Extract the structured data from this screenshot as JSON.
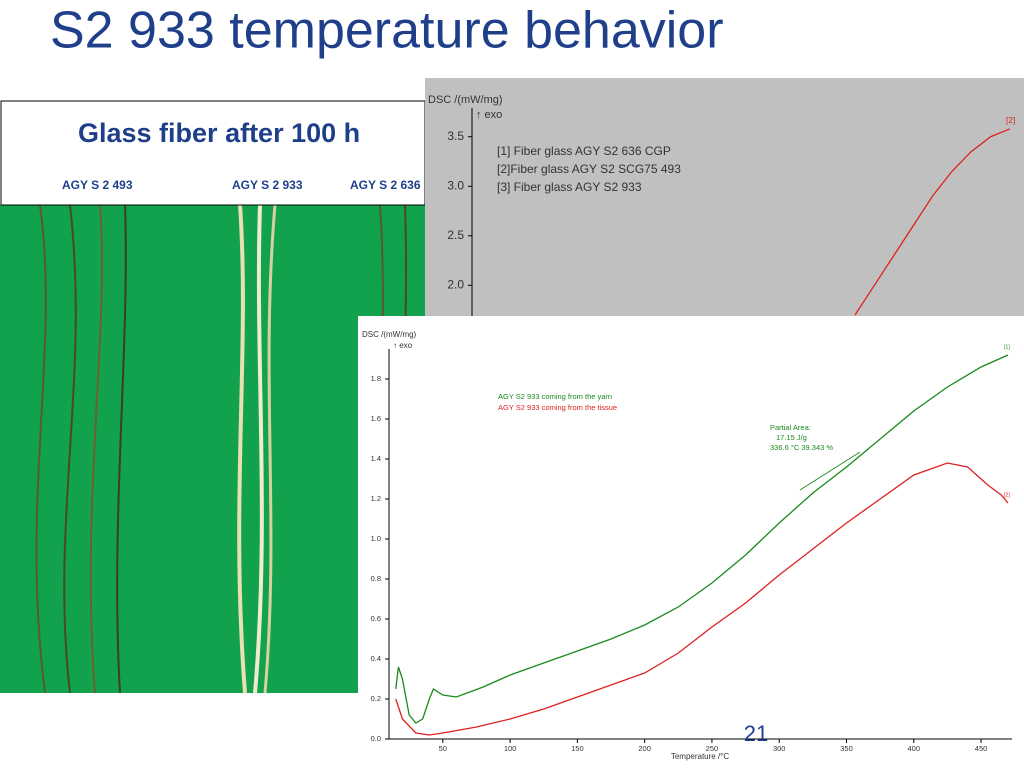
{
  "slide_title": "S2 933 temperature behavior",
  "photo_panel": {
    "heading": "Glass fiber after 100 h",
    "labels": [
      "AGY S 2 493",
      "AGY S 2 933",
      "AGY S 2 636"
    ]
  },
  "charts": [
    {
      "type": "line",
      "y_label": "DSC /(mW/mg)",
      "y_note": "↑ exo",
      "ylim": [
        1.67,
        3.79
      ],
      "yticks": [
        {
          "value": 2,
          "label": "2.0"
        },
        2.5,
        {
          "value": 3,
          "label": "3.0"
        },
        3.5
      ],
      "legend_lines": [
        "[1] Fiber glass AGY S2 636 CGP",
        "[2]Fiber glass AGY S2 SCG75 493",
        "[3] Fiber glass AGY S2 933"
      ],
      "series": [
        {
          "name": "[2]",
          "color": "#e02020",
          "values": [
            1.7,
            2.0,
            2.3,
            2.6,
            2.9,
            3.15,
            3.35,
            3.5,
            3.58
          ]
        }
      ]
    },
    {
      "type": "line",
      "y_label": "DSC /(mW/mg)",
      "y_note": "↑ exo",
      "x_label": "Temperature /°C",
      "xlim": [
        10,
        473
      ],
      "ylim": [
        0,
        1.95
      ],
      "xticks": [
        50,
        100,
        150,
        200,
        250,
        300,
        350,
        400,
        450
      ],
      "yticks": [
        {
          "value": 0,
          "label": "0.0"
        },
        0.2,
        0.4,
        0.6,
        0.8,
        {
          "value": 1,
          "label": "1.0"
        },
        1.2,
        1.4,
        1.6,
        1.8
      ],
      "series": [
        {
          "name": "AGY S2 933 coming from the yarn",
          "marker": "[1]",
          "color": "#1a8a1a",
          "x": [
            15,
            17,
            20,
            25,
            30,
            35,
            40,
            43,
            50,
            60,
            80,
            100,
            125,
            150,
            175,
            200,
            225,
            250,
            275,
            300,
            325,
            350,
            375,
            400,
            425,
            450,
            470
          ],
          "values": [
            0.25,
            0.36,
            0.3,
            0.12,
            0.08,
            0.1,
            0.2,
            0.25,
            0.22,
            0.21,
            0.26,
            0.32,
            0.38,
            0.44,
            0.5,
            0.57,
            0.66,
            0.78,
            0.92,
            1.08,
            1.23,
            1.36,
            1.5,
            1.64,
            1.76,
            1.86,
            1.92
          ]
        },
        {
          "name": "AGY S2 933 coming from the tissue",
          "marker": "[2]",
          "color": "#e02020",
          "x": [
            15,
            20,
            30,
            40,
            50,
            75,
            100,
            125,
            150,
            175,
            200,
            225,
            250,
            275,
            300,
            325,
            350,
            375,
            400,
            425,
            440,
            455,
            465,
            470
          ],
          "values": [
            0.2,
            0.1,
            0.03,
            0.02,
            0.03,
            0.06,
            0.1,
            0.15,
            0.21,
            0.27,
            0.33,
            0.43,
            0.56,
            0.68,
            0.82,
            0.95,
            1.08,
            1.2,
            1.32,
            1.38,
            1.36,
            1.27,
            1.22,
            1.18
          ]
        }
      ],
      "annotation": [
        "Partial Area:",
        "17.15 J/g",
        "336.6 °C 39.343 %"
      ]
    }
  ],
  "page_number": "21"
}
